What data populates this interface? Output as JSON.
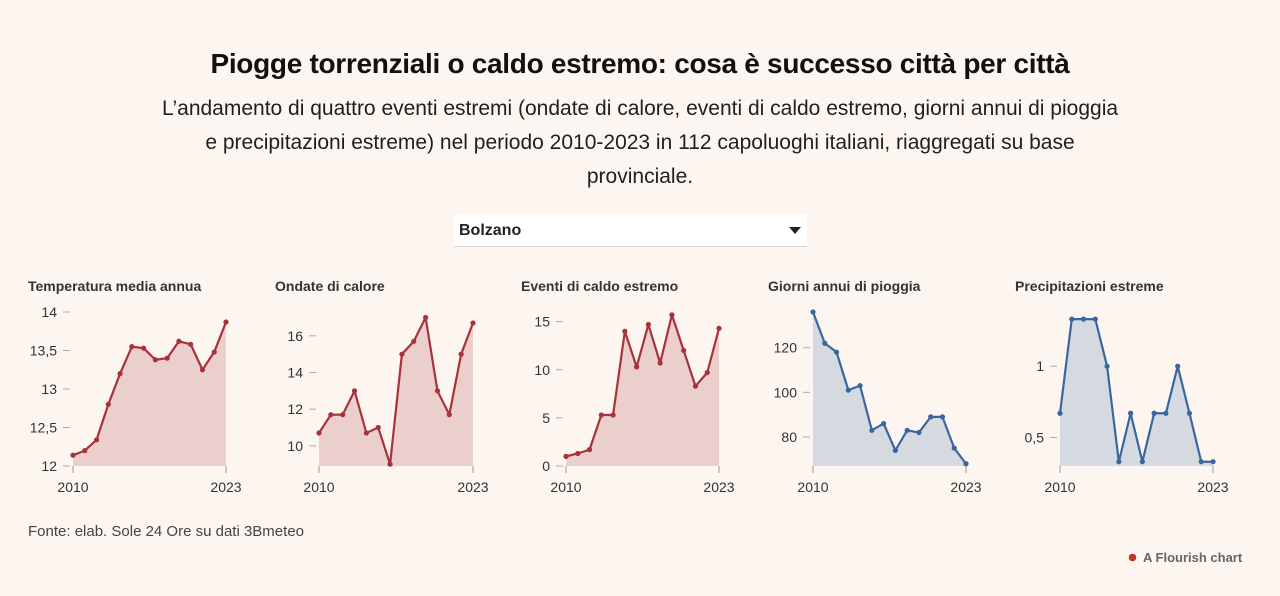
{
  "title": "Piogge torrenziali o caldo estremo: cosa è successo città per città",
  "subtitle": "L’andamento di quattro eventi estremi (ondate di calore, eventi di caldo estremo, giorni annui di pioggia e precipitazioni estreme) nel periodo 2010-2023 in 112 capoluoghi italiani, riaggregati su base provinciale.",
  "selector": {
    "value": "Bolzano"
  },
  "source": "Fonte: elab. Sole 24 Ore su dati 3Bmeteo",
  "credit": "A Flourish chart",
  "colors": {
    "red": "#a8313a",
    "red_fill": "#ebcfcc",
    "blue": "#3a66a0",
    "blue_fill": "#d5dae1",
    "background": "#fdf6f0"
  },
  "chart_data": [
    {
      "type": "area",
      "title": "Temperatura media annua",
      "x": [
        2010,
        2011,
        2012,
        2013,
        2014,
        2015,
        2016,
        2017,
        2018,
        2019,
        2020,
        2021,
        2022,
        2023
      ],
      "xticks": [
        "2010",
        "2023"
      ],
      "values": [
        12.14,
        12.2,
        12.34,
        12.8,
        13.2,
        13.55,
        13.53,
        13.38,
        13.4,
        13.62,
        13.58,
        13.25,
        13.48,
        13.87
      ],
      "ylim": [
        12,
        14
      ],
      "yticks": [
        12,
        12.5,
        13,
        13.5,
        14
      ],
      "ytick_labels": [
        "12",
        "12,5",
        "13",
        "13,5",
        "14"
      ],
      "color": "red"
    },
    {
      "type": "area",
      "title": "Ondate di calore",
      "x": [
        2010,
        2011,
        2012,
        2013,
        2014,
        2015,
        2016,
        2017,
        2018,
        2019,
        2020,
        2021,
        2022,
        2023
      ],
      "xticks": [
        "2010",
        "2023"
      ],
      "values": [
        10.7,
        11.7,
        11.7,
        13.0,
        10.7,
        11.0,
        9.0,
        15.0,
        15.7,
        17.0,
        13.0,
        11.7,
        15.0,
        16.7
      ],
      "ylim": [
        8.9,
        17.3
      ],
      "yticks": [
        10,
        12,
        14,
        16
      ],
      "ytick_labels": [
        "10",
        "12",
        "14",
        "16"
      ],
      "color": "red"
    },
    {
      "type": "area",
      "title": "Eventi di caldo estremo",
      "x": [
        2010,
        2011,
        2012,
        2013,
        2014,
        2015,
        2016,
        2017,
        2018,
        2019,
        2020,
        2021,
        2022,
        2023
      ],
      "xticks": [
        "2010",
        "2023"
      ],
      "values": [
        1.0,
        1.3,
        1.7,
        5.3,
        5.3,
        14.0,
        10.3,
        14.7,
        10.7,
        15.7,
        12.0,
        8.3,
        9.7,
        14.3
      ],
      "ylim": [
        0,
        16
      ],
      "yticks": [
        0,
        5,
        10,
        15
      ],
      "ytick_labels": [
        "0",
        "5",
        "10",
        "15"
      ],
      "color": "red"
    },
    {
      "type": "area",
      "title": "Giorni annui di pioggia",
      "x": [
        2010,
        2011,
        2012,
        2013,
        2014,
        2015,
        2016,
        2017,
        2018,
        2019,
        2020,
        2021,
        2022,
        2023
      ],
      "xticks": [
        "2010",
        "2023"
      ],
      "values": [
        136,
        122,
        118,
        101,
        103,
        83,
        86,
        74,
        83,
        82,
        89,
        89,
        75,
        68
      ],
      "ylim": [
        67,
        136
      ],
      "yticks": [
        80,
        100,
        120
      ],
      "ytick_labels": [
        "80",
        "100",
        "120"
      ],
      "color": "blue"
    },
    {
      "type": "area",
      "title": "Precipitazioni estreme",
      "x": [
        2010,
        2011,
        2012,
        2013,
        2014,
        2015,
        2016,
        2017,
        2018,
        2019,
        2020,
        2021,
        2022,
        2023
      ],
      "xticks": [
        "2010",
        "2023"
      ],
      "values": [
        0.67,
        1.33,
        1.33,
        1.33,
        1.0,
        0.33,
        0.67,
        0.33,
        0.67,
        0.67,
        1.0,
        0.67,
        0.33,
        0.33
      ],
      "ylim": [
        0.3,
        1.38
      ],
      "yticks": [
        0.5,
        1
      ],
      "ytick_labels": [
        "0,5",
        "1"
      ],
      "color": "blue"
    }
  ]
}
